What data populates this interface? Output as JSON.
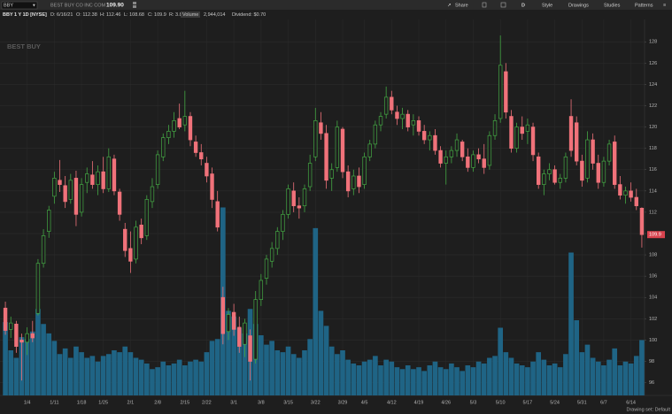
{
  "toolbar": {
    "symbol": "BBY",
    "company": "BEST BUY CO INC COM",
    "last": "109.90",
    "share": "Share",
    "period": "D",
    "style": "Style",
    "drawings": "Drawings",
    "studies": "Studies",
    "patterns": "Patterns"
  },
  "info": [
    "BBY 1 Y 1D [NYSE]",
    "D: 6/16/21",
    "O: 112.38",
    "H: 112.46",
    "L: 108.68",
    "C: 109.9",
    "R: 3.8",
    "Volume",
    "2,944,014",
    "Dividend: $0.70"
  ],
  "footer": "Drawing set: Default",
  "chart_data": {
    "type": "candlestick",
    "watermark": "BEST BUY",
    "categories": [
      null,
      null,
      null,
      null,
      "1/4",
      null,
      null,
      null,
      null,
      "1/11",
      null,
      null,
      null,
      null,
      "1/18",
      null,
      null,
      null,
      "1/25",
      null,
      null,
      null,
      null,
      "2/1",
      null,
      null,
      null,
      null,
      "2/8",
      null,
      null,
      null,
      null,
      "2/15",
      null,
      null,
      null,
      "2/22",
      null,
      null,
      null,
      null,
      "3/1",
      null,
      null,
      null,
      null,
      "3/8",
      null,
      null,
      null,
      null,
      "3/15",
      null,
      null,
      null,
      null,
      "3/22",
      null,
      null,
      null,
      null,
      "3/29",
      null,
      null,
      null,
      "4/5",
      null,
      null,
      null,
      null,
      "4/12",
      null,
      null,
      null,
      null,
      "4/19",
      null,
      null,
      null,
      null,
      "4/26",
      null,
      null,
      null,
      null,
      "5/3",
      null,
      null,
      null,
      null,
      "5/10",
      null,
      null,
      null,
      null,
      "5/17",
      null,
      null,
      null,
      null,
      "5/24",
      null,
      null,
      null,
      null,
      "5/31",
      null,
      null,
      null,
      "6/7",
      null,
      null,
      null,
      null,
      "6/14",
      null,
      null
    ],
    "open": [
      103.0,
      101.0,
      101.5,
      100.0,
      99.8,
      100.6,
      102.5,
      107.2,
      110.2,
      113.5,
      115.0,
      114.5,
      113.2,
      115.2,
      112.0,
      114.8,
      115.5,
      114.6,
      115.8,
      114.2,
      117.0,
      113.9,
      110.4,
      108.6,
      107.6,
      110.8,
      109.8,
      113.0,
      114.6,
      117.2,
      119.0,
      119.6,
      120.8,
      120.2,
      121.0,
      118.6,
      117.6,
      116.6,
      115.6,
      113.0,
      104.0,
      100.8,
      102.6,
      101.2,
      99.6,
      100.4,
      98.2,
      103.8,
      105.8,
      107.4,
      108.6,
      110.2,
      111.8,
      114.0,
      112.6,
      112.6,
      114.4,
      117.2,
      120.4,
      119.4,
      115.2,
      116.2,
      119.8,
      115.8,
      114.2,
      115.4,
      114.6,
      117.2,
      118.4,
      120.2,
      121.2,
      122.8,
      121.4,
      120.8,
      121.2,
      120.2,
      120.6,
      119.6,
      118.8,
      119.2,
      117.8,
      116.6,
      117.2,
      117.8,
      118.6,
      117.2,
      116.2,
      117.4,
      117.0,
      116.4,
      119.2,
      120.8,
      125.2,
      121.0,
      118.0,
      120.0,
      119.6,
      120.0,
      117.2,
      114.6,
      115.6,
      116.0,
      114.8,
      115.2,
      121.0,
      120.4,
      116.8,
      115.2,
      118.8,
      116.6,
      114.8,
      116.8,
      118.6,
      114.6,
      113.6,
      114.0,
      113.4,
      112.38
    ],
    "high": [
      103.6,
      102.2,
      101.8,
      100.6,
      101.2,
      101.8,
      107.6,
      110.4,
      112.6,
      115.8,
      116.9,
      115.4,
      115.6,
      115.9,
      115.2,
      116.2,
      116.8,
      116.4,
      117.2,
      118.0,
      117.4,
      114.2,
      111.0,
      110.2,
      111.2,
      111.4,
      113.6,
      115.2,
      117.8,
      119.4,
      120.2,
      121.4,
      122.2,
      123.4,
      121.4,
      119.2,
      118.4,
      117.2,
      116.2,
      114.0,
      105.0,
      103.0,
      103.4,
      102.2,
      102.0,
      101.0,
      104.6,
      106.2,
      108.0,
      109.2,
      110.6,
      112.2,
      114.6,
      114.8,
      113.4,
      114.6,
      117.4,
      121.8,
      121.4,
      120.2,
      116.6,
      120.6,
      120.0,
      116.4,
      116.0,
      116.2,
      117.6,
      118.8,
      120.6,
      121.4,
      123.8,
      123.4,
      122.0,
      121.8,
      121.6,
      121.2,
      121.0,
      120.2,
      119.6,
      119.8,
      118.2,
      117.8,
      118.2,
      119.4,
      118.8,
      118.0,
      117.8,
      118.0,
      118.4,
      119.6,
      121.2,
      128.6,
      126.0,
      121.6,
      120.4,
      121.0,
      120.8,
      120.4,
      117.6,
      116.0,
      116.6,
      116.4,
      115.6,
      117.6,
      122.6,
      121.0,
      117.4,
      119.6,
      119.4,
      117.4,
      117.2,
      118.8,
      119.2,
      115.4,
      114.4,
      114.8,
      114.2,
      112.46
    ],
    "low": [
      100.5,
      100.2,
      98.8,
      96.2,
      98.6,
      99.8,
      102.3,
      106.8,
      109.6,
      112.8,
      113.9,
      112.4,
      112.8,
      110.7,
      111.6,
      113.8,
      114.2,
      113.6,
      113.8,
      113.9,
      113.6,
      111.2,
      107.8,
      106.3,
      107.2,
      109.0,
      109.4,
      112.4,
      114.2,
      116.8,
      118.4,
      119.0,
      119.8,
      119.6,
      118.2,
      117.2,
      116.4,
      114.8,
      112.4,
      110.2,
      99.6,
      100.0,
      100.4,
      98.8,
      98.4,
      96.2,
      97.8,
      103.2,
      105.2,
      106.8,
      108.0,
      109.4,
      111.4,
      112.0,
      111.4,
      112.0,
      114.0,
      116.8,
      118.8,
      114.2,
      114.0,
      115.8,
      115.2,
      113.4,
      113.6,
      113.8,
      114.2,
      116.8,
      118.0,
      119.6,
      120.8,
      121.2,
      120.2,
      119.8,
      119.6,
      119.2,
      119.2,
      118.4,
      117.8,
      117.4,
      116.2,
      114.6,
      116.6,
      117.2,
      116.8,
      115.8,
      115.8,
      116.6,
      115.6,
      116.0,
      118.8,
      120.4,
      120.8,
      117.6,
      117.6,
      118.8,
      118.4,
      116.8,
      114.2,
      113.6,
      115.0,
      114.6,
      114.2,
      114.8,
      117.2,
      116.4,
      114.4,
      114.8,
      116.0,
      114.2,
      114.4,
      116.4,
      114.2,
      113.2,
      112.8,
      113.0,
      112.2,
      108.68
    ],
    "close": [
      100.9,
      101.6,
      99.4,
      99.8,
      100.6,
      100.2,
      107.2,
      109.8,
      112.2,
      115.2,
      114.6,
      113.0,
      115.0,
      111.8,
      114.6,
      115.6,
      114.6,
      115.8,
      114.2,
      117.2,
      114.0,
      111.8,
      108.4,
      107.4,
      110.6,
      109.6,
      113.2,
      114.4,
      117.4,
      119.0,
      119.6,
      120.6,
      120.0,
      121.0,
      118.8,
      117.6,
      117.0,
      115.4,
      113.2,
      110.6,
      100.6,
      102.4,
      101.0,
      99.4,
      101.6,
      98.0,
      103.8,
      105.6,
      107.6,
      108.6,
      110.2,
      111.8,
      114.2,
      112.6,
      112.4,
      114.2,
      116.6,
      120.6,
      119.4,
      115.0,
      116.0,
      120.0,
      115.8,
      114.0,
      115.4,
      114.4,
      117.2,
      118.4,
      120.2,
      121.0,
      122.8,
      121.6,
      120.8,
      121.2,
      120.0,
      120.6,
      119.6,
      118.8,
      119.2,
      117.8,
      116.6,
      117.2,
      117.8,
      118.8,
      117.2,
      116.2,
      117.4,
      117.0,
      116.2,
      119.2,
      120.6,
      125.8,
      121.4,
      118.0,
      120.0,
      119.4,
      120.2,
      117.4,
      114.6,
      115.6,
      116.0,
      114.8,
      115.2,
      117.2,
      117.8,
      116.8,
      115.0,
      118.8,
      116.6,
      114.8,
      116.8,
      118.4,
      114.6,
      113.6,
      114.0,
      113.4,
      112.6,
      109.9
    ],
    "volume": [
      3900000,
      2400000,
      2000000,
      3100000,
      3000000,
      3400000,
      4600000,
      3800000,
      3300000,
      2900000,
      2200000,
      2500000,
      2000000,
      2600000,
      2300000,
      2000000,
      2100000,
      1800000,
      2100000,
      2200000,
      2400000,
      2300000,
      2600000,
      2300000,
      2000000,
      1900000,
      1700000,
      1400000,
      1500000,
      1800000,
      1600000,
      1700000,
      1900000,
      1600000,
      1800000,
      1900000,
      1800000,
      2300000,
      2900000,
      3000000,
      10000000,
      4500000,
      4200000,
      3600000,
      3300000,
      4600000,
      3800000,
      3200000,
      2700000,
      2900000,
      2400000,
      2300000,
      2600000,
      2200000,
      2000000,
      2400000,
      3000000,
      8900000,
      4500000,
      3700000,
      2600000,
      2200000,
      2400000,
      1900000,
      1700000,
      1600000,
      1800000,
      1900000,
      2100000,
      1600000,
      1900000,
      1800000,
      1500000,
      1400000,
      1600000,
      1400000,
      1500000,
      1300000,
      1600000,
      1800000,
      1500000,
      1400000,
      1700000,
      1500000,
      1300000,
      1600000,
      1500000,
      1800000,
      1700000,
      2000000,
      2100000,
      3600000,
      2300000,
      2000000,
      1700000,
      1600000,
      1500000,
      1800000,
      2300000,
      1900000,
      1600000,
      1700000,
      1500000,
      2200000,
      7600000,
      4000000,
      2300000,
      2700000,
      2000000,
      1800000,
      1600000,
      1900000,
      2500000,
      1600000,
      1800000,
      1700000,
      2100000,
      2944014
    ],
    "ylim": [
      94.8,
      130.1
    ],
    "yticks": [
      96,
      98,
      100,
      102,
      104,
      106,
      108,
      110,
      112,
      114,
      116,
      118,
      120,
      122,
      124,
      126,
      128
    ],
    "y2lim": [
      0,
      20000000
    ],
    "grid": true,
    "up_color": "#44a844",
    "down_color": "#f0727a",
    "volume_color": "#1f6485",
    "last_color": "#d9434e"
  }
}
